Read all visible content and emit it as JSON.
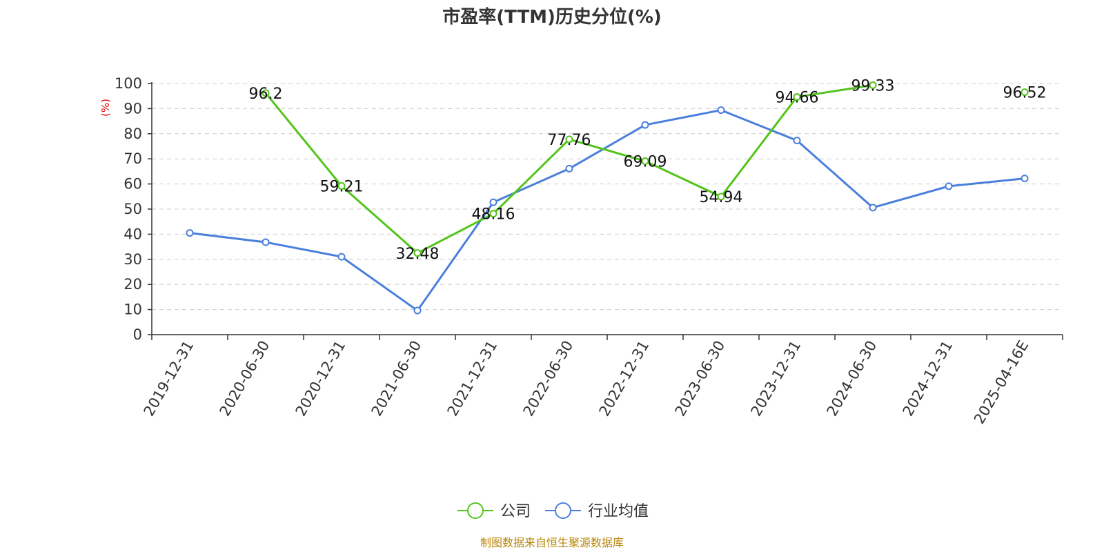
{
  "chart_data": {
    "type": "line",
    "title": "市盈率(TTM)历史分位(%)",
    "ylabel": "(%)",
    "ylim": [
      0,
      100
    ],
    "yticks": [
      0,
      10,
      20,
      30,
      40,
      50,
      60,
      70,
      80,
      90,
      100
    ],
    "grid": true,
    "legend_position": "bottom",
    "x": [
      "2019-12-31",
      "2020-06-30",
      "2020-12-31",
      "2021-06-30",
      "2021-12-31",
      "2022-06-30",
      "2022-12-31",
      "2023-06-30",
      "2023-12-31",
      "2024-06-30",
      "2024-12-31",
      "2025-04-16E"
    ],
    "series": [
      {
        "name": "公司",
        "color": "#52c41a",
        "values": [
          null,
          96.2,
          59.21,
          32.48,
          48.16,
          77.76,
          69.09,
          54.94,
          94.66,
          99.33,
          null,
          96.52
        ],
        "labels": [
          "",
          "96.2",
          "59.21",
          "32.48",
          "48.16",
          "77.76",
          "69.09",
          "54.94",
          "94.66",
          "99.33",
          "",
          "96.52"
        ]
      },
      {
        "name": "行业均值",
        "color": "#4a7fdc",
        "values": [
          40.5,
          36.8,
          31,
          9.6,
          52.7,
          66.1,
          83.5,
          89.4,
          77.3,
          50.6,
          59.1,
          62.2
        ]
      }
    ],
    "source": "制图数据来自恒生聚源数据库"
  }
}
